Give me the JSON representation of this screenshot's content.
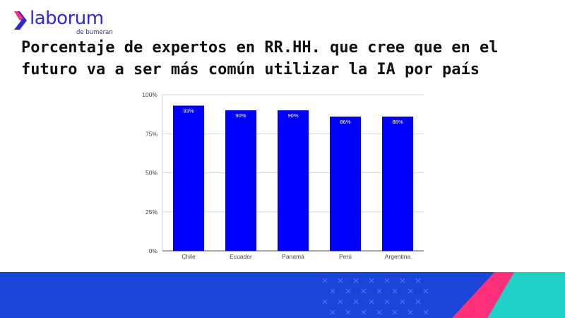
{
  "brand": {
    "name": "laborum",
    "tagline": "de bumeran",
    "logo_icon": "chevron-right-icon",
    "colors": {
      "primary": "#2b2bd6",
      "accent": "#ff2f7a",
      "teal": "#1fd1c6",
      "footer": "#1a45d9"
    }
  },
  "title": "Porcentaje de expertos en RR.HH. que cree que en el futuro va a ser más común utilizar la IA por país",
  "chart_data": {
    "type": "bar",
    "categories": [
      "Chile",
      "Ecuador",
      "Panamá",
      "Perú",
      "Argentina"
    ],
    "values": [
      93,
      90,
      90,
      86,
      86
    ],
    "data_labels": [
      "93%",
      "90%",
      "90%",
      "86%",
      "86%"
    ],
    "yticks": [
      0,
      25,
      50,
      75,
      100
    ],
    "ytick_labels": [
      "0%",
      "25%",
      "50%",
      "75%",
      "100%"
    ],
    "ylim": [
      0,
      100
    ],
    "grid": true,
    "bar_color": "#0000ff",
    "title": "",
    "xlabel": "",
    "ylabel": ""
  }
}
